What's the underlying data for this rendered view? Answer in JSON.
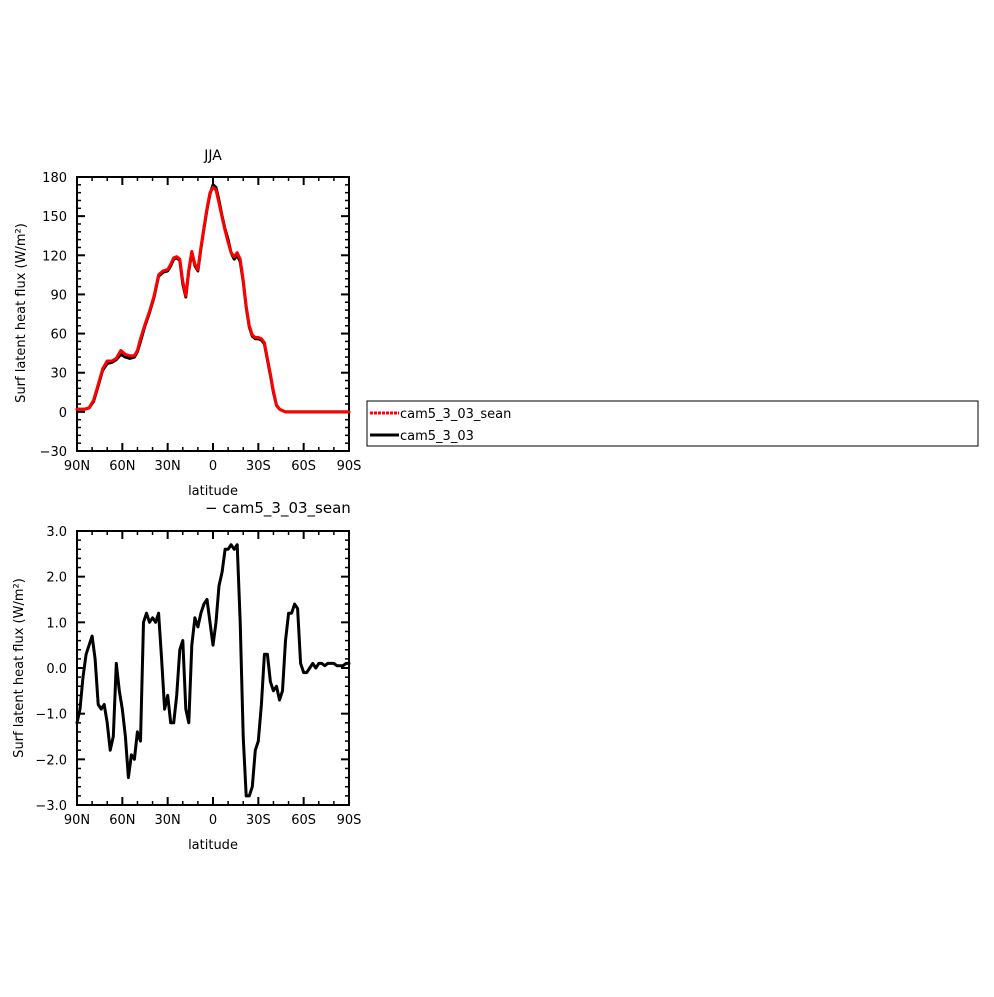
{
  "chart_data": [
    {
      "type": "line",
      "title": "JJA",
      "xlabel": "latitude",
      "ylabel": "Surf latent heat flux (W/m²)",
      "xlim": [
        90,
        -90
      ],
      "ylim": [
        -30,
        180
      ],
      "x_ticks": [
        90,
        60,
        30,
        0,
        -30,
        -60,
        -90
      ],
      "x_tick_labels": [
        "90N",
        "60N",
        "30N",
        "0",
        "30S",
        "60S",
        "90S"
      ],
      "y_ticks": [
        -30,
        0,
        30,
        60,
        90,
        120,
        150,
        180
      ],
      "y_tick_labels": [
        "−30",
        "0",
        "30",
        "60",
        "90",
        "120",
        "150",
        "180"
      ],
      "legend_position": "right",
      "series": [
        {
          "name": "cam5_3_03",
          "color": "#000000",
          "x": [
            90,
            85,
            82,
            79,
            76,
            73,
            70,
            67,
            64,
            61,
            58,
            55,
            52,
            50,
            48,
            45,
            42,
            39,
            36,
            33,
            30,
            28,
            26,
            24,
            22,
            20,
            18,
            16,
            14,
            12,
            10,
            8,
            6,
            4,
            2,
            0,
            -2,
            -4,
            -6,
            -8,
            -10,
            -12,
            -14,
            -16,
            -18,
            -20,
            -22,
            -24,
            -26,
            -28,
            -30,
            -32,
            -34,
            -36,
            -38,
            -40,
            -42,
            -44,
            -46,
            -48,
            -50,
            -52,
            -54,
            -56,
            -58,
            -60,
            -62,
            -64,
            -66,
            -68,
            -70,
            -72,
            -75,
            -78,
            -81,
            -84,
            -87,
            -90
          ],
          "values": [
            2,
            2,
            3,
            8,
            20,
            32,
            37,
            38,
            40,
            44,
            42,
            41,
            42,
            46,
            54,
            66,
            76,
            88,
            104,
            107,
            108,
            112,
            117,
            118,
            116,
            98,
            88,
            108,
            122,
            112,
            108,
            125,
            140,
            155,
            167,
            174,
            172,
            162,
            150,
            140,
            132,
            122,
            117,
            120,
            115,
            100,
            80,
            65,
            58,
            56,
            56,
            55,
            52,
            40,
            28,
            15,
            5,
            2,
            1,
            0,
            0,
            0,
            0,
            0,
            0,
            0,
            0,
            0,
            0,
            0,
            0,
            0,
            0,
            0,
            0,
            0,
            0,
            0
          ]
        },
        {
          "name": "cam5_3_03_sean",
          "color": "#ff0000",
          "x": [
            90,
            85,
            82,
            79,
            76,
            73,
            70,
            67,
            64,
            61,
            58,
            55,
            52,
            50,
            48,
            45,
            42,
            39,
            36,
            33,
            30,
            28,
            26,
            24,
            22,
            20,
            18,
            16,
            14,
            12,
            10,
            8,
            6,
            4,
            2,
            0,
            -2,
            -4,
            -6,
            -8,
            -10,
            -12,
            -14,
            -16,
            -18,
            -20,
            -22,
            -24,
            -26,
            -28,
            -30,
            -32,
            -34,
            -36,
            -38,
            -40,
            -42,
            -44,
            -46,
            -48,
            -50,
            -52,
            -54,
            -56,
            -58,
            -60,
            -62,
            -64,
            -66,
            -68,
            -70,
            -72,
            -75,
            -78,
            -81,
            -84,
            -87,
            -90
          ],
          "values": [
            2,
            2,
            3,
            9,
            21,
            33,
            39,
            39,
            41,
            47,
            44,
            43,
            43,
            47,
            56,
            67,
            77,
            89,
            105,
            108,
            109,
            113,
            118,
            119,
            117,
            100,
            89,
            109,
            123,
            113,
            109,
            126,
            141,
            156,
            168,
            172,
            170,
            160,
            149,
            139,
            130,
            122,
            119,
            122,
            117,
            101,
            81,
            66,
            59,
            57,
            57,
            56,
            53,
            41,
            29,
            16,
            5,
            2,
            1,
            0,
            0,
            0,
            0,
            0,
            0,
            0,
            0,
            0,
            0,
            0,
            0,
            0,
            0,
            0,
            0,
            0,
            0,
            0
          ]
        }
      ]
    },
    {
      "type": "line",
      "title": "− cam5_3_03_sean",
      "xlabel": "latitude",
      "ylabel": "Surf latent heat flux (W/m²)",
      "xlim": [
        90,
        -90
      ],
      "ylim": [
        -3.0,
        3.0
      ],
      "x_ticks": [
        90,
        60,
        30,
        0,
        -30,
        -60,
        -90
      ],
      "x_tick_labels": [
        "90N",
        "60N",
        "30N",
        "0",
        "30S",
        "60S",
        "90S"
      ],
      "y_ticks": [
        -3,
        -2,
        -1,
        0,
        1,
        2,
        3
      ],
      "y_tick_labels": [
        "−3.0",
        "−2.0",
        "−1.0",
        "0.0",
        "1.0",
        "2.0",
        "3.0"
      ],
      "series": [
        {
          "color": "#000000",
          "x": [
            90,
            88,
            86,
            84,
            82,
            80,
            78,
            76,
            74,
            72,
            70,
            68,
            66,
            64,
            62,
            60,
            58,
            56,
            54,
            52,
            50,
            48,
            46,
            44,
            42,
            40,
            38,
            36,
            34,
            32,
            30,
            28,
            26,
            24,
            22,
            20,
            18,
            16,
            14,
            12,
            10,
            8,
            6,
            4,
            2,
            0,
            -2,
            -4,
            -6,
            -8,
            -10,
            -12,
            -14,
            -16,
            -18,
            -20,
            -22,
            -24,
            -26,
            -28,
            -30,
            -32,
            -34,
            -36,
            -38,
            -40,
            -42,
            -44,
            -46,
            -48,
            -50,
            -52,
            -54,
            -56,
            -58,
            -60,
            -62,
            -64,
            -66,
            -68,
            -70,
            -72,
            -74,
            -76,
            -78,
            -80,
            -82,
            -84,
            -86,
            -88,
            -90
          ],
          "values": [
            -1.2,
            -0.9,
            -0.2,
            0.3,
            0.5,
            0.7,
            0.2,
            -0.8,
            -0.9,
            -0.8,
            -1.2,
            -1.8,
            -1.5,
            0.1,
            -0.5,
            -0.9,
            -1.5,
            -2.4,
            -1.9,
            -2.0,
            -1.4,
            -1.6,
            1.0,
            1.2,
            1.0,
            1.1,
            1.0,
            1.2,
            0.2,
            -0.9,
            -0.6,
            -1.2,
            -1.2,
            -0.6,
            0.4,
            0.6,
            -0.9,
            -1.2,
            0.5,
            1.1,
            0.9,
            1.2,
            1.4,
            1.5,
            1.0,
            0.5,
            1.0,
            1.8,
            2.1,
            2.6,
            2.6,
            2.7,
            2.6,
            2.7,
            1.0,
            -1.5,
            -2.8,
            -2.8,
            -2.6,
            -1.8,
            -1.6,
            -0.8,
            0.3,
            0.3,
            -0.3,
            -0.5,
            -0.4,
            -0.7,
            -0.5,
            0.6,
            1.2,
            1.2,
            1.4,
            1.3,
            0.1,
            -0.1,
            -0.1,
            0.0,
            0.1,
            0.0,
            0.1,
            0.1,
            0.05,
            0.1,
            0.1,
            0.1,
            0.05,
            0.05,
            0.05,
            0.1,
            0.1
          ]
        }
      ]
    }
  ]
}
